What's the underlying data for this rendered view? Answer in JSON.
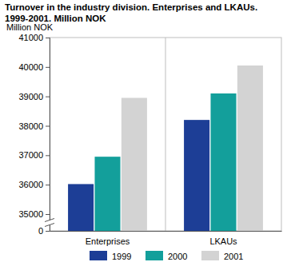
{
  "chart_data": {
    "type": "bar",
    "title": "Turnover in the industry division. Enterprises and LKAUs. 1999-2001. Million NOK",
    "ylabel": "Million NOK",
    "categories": [
      "Enterprises",
      "LKAUs"
    ],
    "series": [
      {
        "name": "1999",
        "color": "#1d3e96",
        "values": [
          36020,
          38200
        ]
      },
      {
        "name": "2000",
        "color": "#139f9b",
        "values": [
          36950,
          39100
        ]
      },
      {
        "name": "2001",
        "color": "#d3d3d3",
        "values": [
          38950,
          40050
        ]
      }
    ],
    "ylim": [
      0,
      41000
    ],
    "yticks": [
      0,
      35000,
      36000,
      37000,
      38000,
      39000,
      40000,
      41000
    ],
    "grid": false,
    "legend": "bottom"
  }
}
